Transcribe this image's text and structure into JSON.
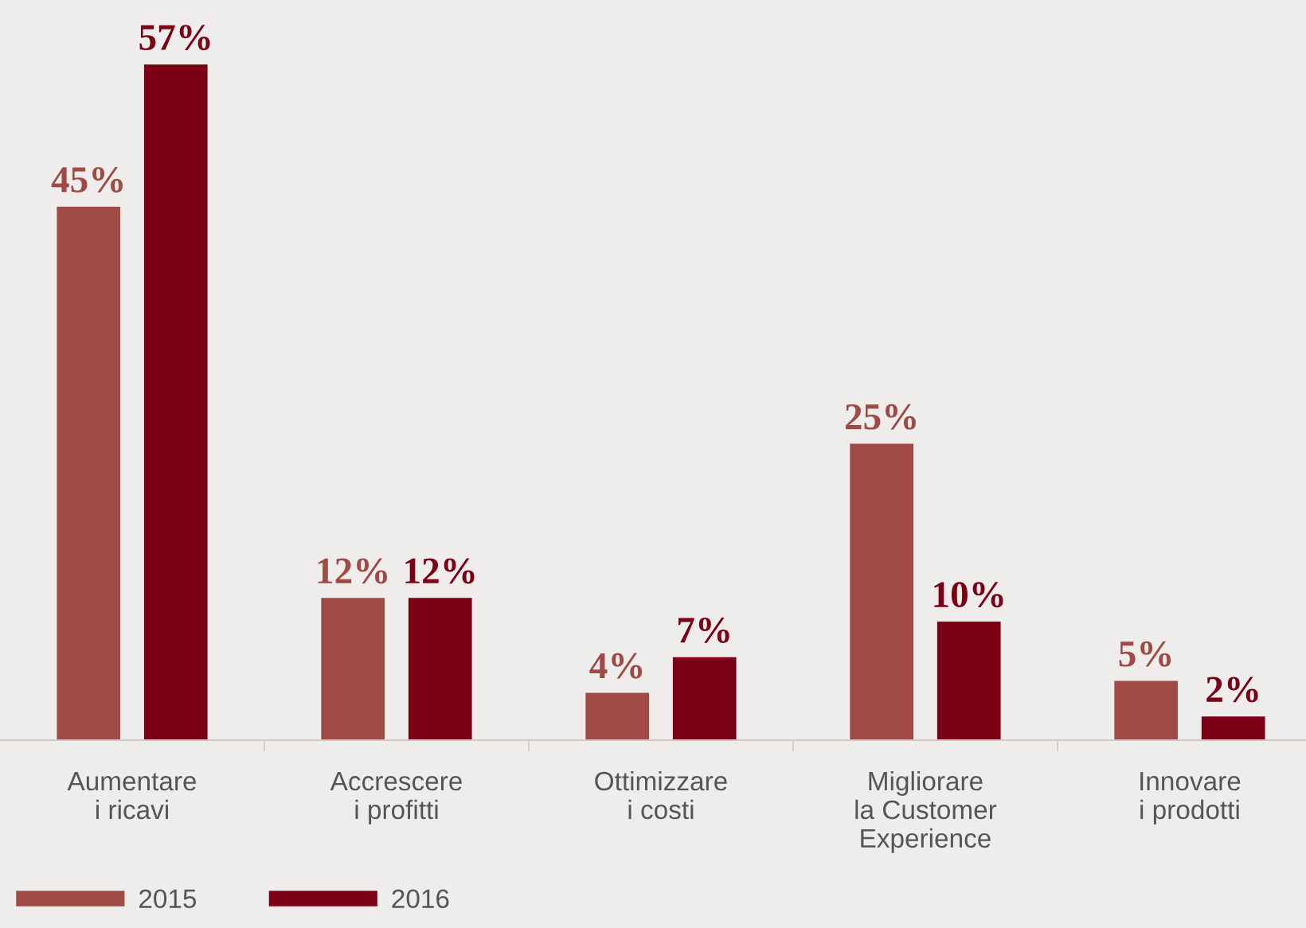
{
  "chart_data": {
    "type": "bar",
    "categories": [
      "Aumentare\ni ricavi",
      "Accrescere\ni profitti",
      "Ottimizzare\ni costi",
      "Migliorare\nla Customer\nExperience",
      "Innovare\ni prodotti"
    ],
    "series": [
      {
        "name": "2015",
        "color": "#a04a45",
        "values": [
          45,
          12,
          4,
          25,
          5
        ],
        "value_labels": [
          "45%",
          "12%",
          "4%",
          "25%",
          "5%"
        ]
      },
      {
        "name": "2016",
        "color": "#7b0016",
        "values": [
          57,
          12,
          7,
          10,
          2
        ],
        "value_labels": [
          "57%",
          "12%",
          "7%",
          "10%",
          "2%"
        ]
      }
    ],
    "legend": "bottom left",
    "grid": false
  }
}
